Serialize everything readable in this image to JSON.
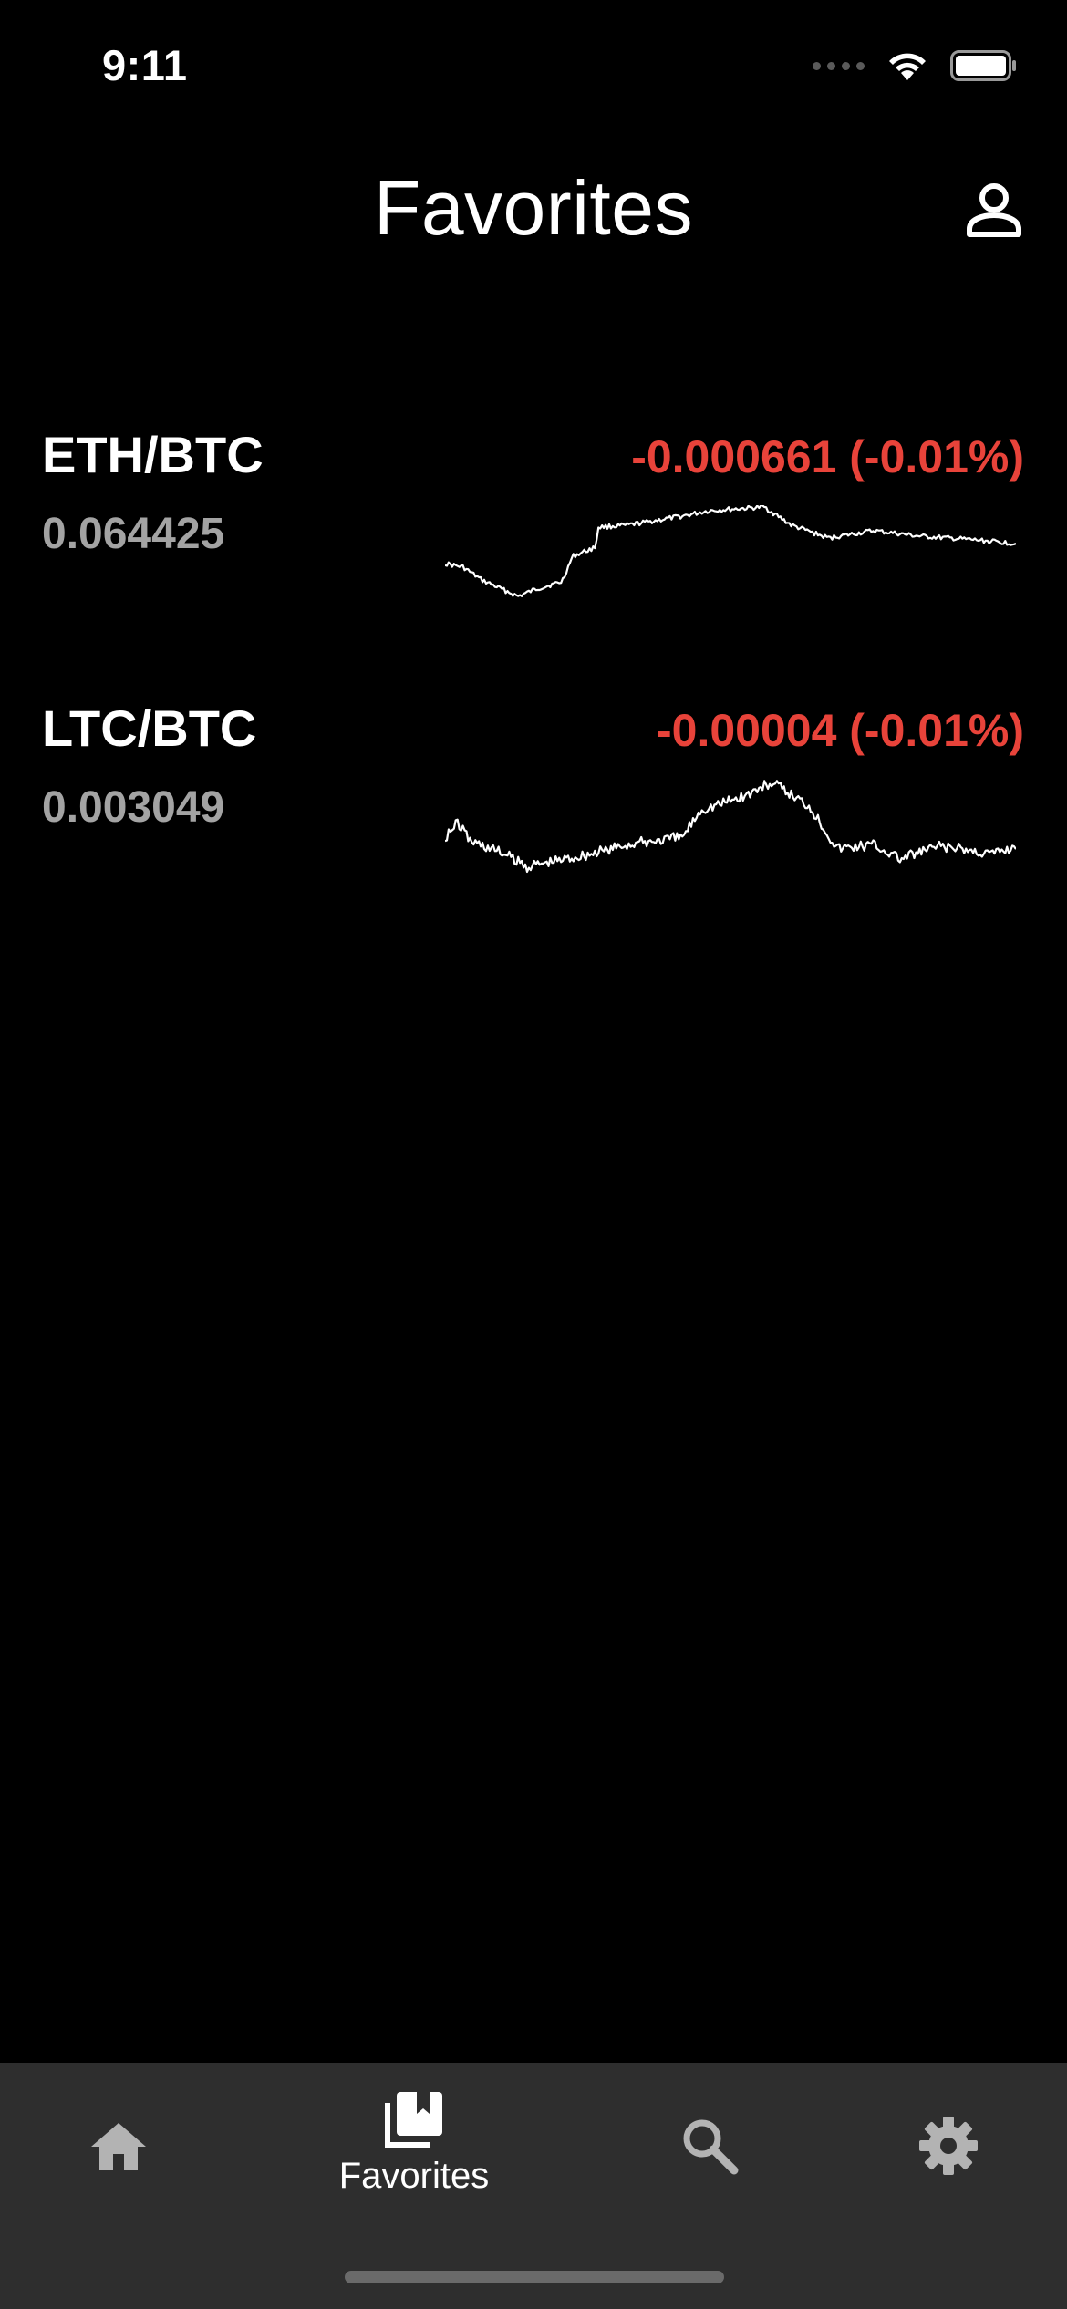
{
  "status_bar": {
    "time": "9:11"
  },
  "header": {
    "title": "Favorites",
    "profile_icon": "person-icon"
  },
  "favorites": [
    {
      "pair": "ETH/BTC",
      "price": "0.064425",
      "change": "-0.000661 (-0.01%)",
      "change_color": "#e8433a"
    },
    {
      "pair": "LTC/BTC",
      "price": "0.003049",
      "change": "-0.00004 (-0.01%)",
      "change_color": "#e8433a"
    }
  ],
  "tab_bar": {
    "tabs": [
      {
        "icon": "home-icon",
        "label": ""
      },
      {
        "icon": "favorites-icon",
        "label": "Favorites",
        "selected": true
      },
      {
        "icon": "search-icon",
        "label": ""
      },
      {
        "icon": "gear-icon",
        "label": ""
      }
    ]
  },
  "colors": {
    "background": "#000000",
    "tab_bar_background": "#2e2e2e",
    "negative_change": "#e8433a",
    "price_text": "#a3a3a3"
  }
}
